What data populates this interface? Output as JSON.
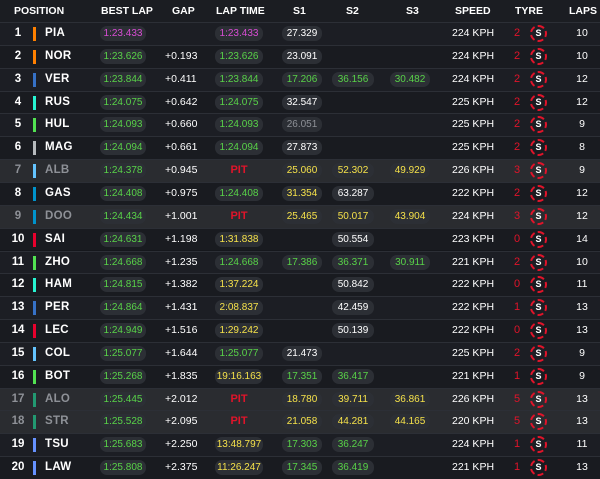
{
  "headers": {
    "position": "POSITION",
    "best_lap": "BEST LAP",
    "gap": "GAP",
    "lap_time": "LAP TIME",
    "s1": "S1",
    "s2": "S2",
    "s3": "S3",
    "speed": "SPEED",
    "tyre": "TYRE",
    "laps": "LAPS"
  },
  "colors": {
    "purple": "#d84dd4",
    "green": "#58d248",
    "yellow": "#f5e14a",
    "white": "#ffffff",
    "grey": "#8e9197",
    "pit": "#e0142a",
    "mclaren": "#ff8000",
    "redbull": "#3671c6",
    "racingbulls": "#6692ff",
    "sauber": "#52e252",
    "haas": "#b6babd",
    "williams": "#64c4ff",
    "alpine": "#0093cc",
    "astonmartin": "#229971",
    "ferrari": "#e8002d",
    "mercedes": "#27f4d2"
  },
  "tyre_icon": "soft-tyre-icon",
  "rows": [
    {
      "pos": "1",
      "driver": "PIA",
      "team_color": "#ff8000",
      "retired": false,
      "best": "1:23.433",
      "best_c": "purple",
      "gap": "",
      "pit": "",
      "laptime": "1:23.433",
      "laptime_c": "purple",
      "s1": "27.329",
      "s1_c": "white",
      "s2": "",
      "s2_c": "",
      "s3": "",
      "s3_c": "",
      "speed": "224 KPH",
      "tyre_age": "2",
      "tyre": "S",
      "laps": "10"
    },
    {
      "pos": "2",
      "driver": "NOR",
      "team_color": "#ff8000",
      "retired": false,
      "best": "1:23.626",
      "best_c": "green",
      "gap": "+0.193",
      "pit": "",
      "laptime": "1:23.626",
      "laptime_c": "green",
      "s1": "23.091",
      "s1_c": "white",
      "s2": "",
      "s2_c": "",
      "s3": "",
      "s3_c": "",
      "speed": "224 KPH",
      "tyre_age": "2",
      "tyre": "S",
      "laps": "10"
    },
    {
      "pos": "3",
      "driver": "VER",
      "team_color": "#3671c6",
      "retired": false,
      "best": "1:23.844",
      "best_c": "green",
      "gap": "+0.411",
      "pit": "",
      "laptime": "1:23.844",
      "laptime_c": "green",
      "s1": "17.206",
      "s1_c": "green",
      "s2": "36.156",
      "s2_c": "green",
      "s3": "30.482",
      "s3_c": "green",
      "speed": "224 KPH",
      "tyre_age": "2",
      "tyre": "S",
      "laps": "12"
    },
    {
      "pos": "4",
      "driver": "RUS",
      "team_color": "#27f4d2",
      "retired": false,
      "best": "1:24.075",
      "best_c": "green",
      "gap": "+0.642",
      "pit": "",
      "laptime": "1:24.075",
      "laptime_c": "green",
      "s1": "32.547",
      "s1_c": "white",
      "s2": "",
      "s2_c": "",
      "s3": "",
      "s3_c": "",
      "speed": "225 KPH",
      "tyre_age": "2",
      "tyre": "S",
      "laps": "12"
    },
    {
      "pos": "5",
      "driver": "HUL",
      "team_color": "#52e252",
      "retired": false,
      "best": "1:24.093",
      "best_c": "green",
      "gap": "+0.660",
      "pit": "",
      "laptime": "1:24.093",
      "laptime_c": "green",
      "s1": "26.051",
      "s1_c": "grey",
      "s2": "",
      "s2_c": "",
      "s3": "",
      "s3_c": "",
      "speed": "225 KPH",
      "tyre_age": "2",
      "tyre": "S",
      "laps": "9"
    },
    {
      "pos": "6",
      "driver": "MAG",
      "team_color": "#b6babd",
      "retired": false,
      "best": "1:24.094",
      "best_c": "green",
      "gap": "+0.661",
      "pit": "",
      "laptime": "1:24.094",
      "laptime_c": "green",
      "s1": "27.873",
      "s1_c": "white",
      "s2": "",
      "s2_c": "",
      "s3": "",
      "s3_c": "",
      "speed": "225 KPH",
      "tyre_age": "2",
      "tyre": "S",
      "laps": "8"
    },
    {
      "pos": "7",
      "driver": "ALB",
      "team_color": "#64c4ff",
      "retired": true,
      "best": "1:24.378",
      "best_c": "green",
      "gap": "+0.945",
      "pit": "PIT",
      "laptime": "",
      "laptime_c": "",
      "s1": "25.060",
      "s1_c": "yellow",
      "s2": "52.302",
      "s2_c": "yellow",
      "s3": "49.929",
      "s3_c": "yellow",
      "speed": "226 KPH",
      "tyre_age": "3",
      "tyre": "S",
      "laps": "9"
    },
    {
      "pos": "8",
      "driver": "GAS",
      "team_color": "#0093cc",
      "retired": false,
      "best": "1:24.408",
      "best_c": "green",
      "gap": "+0.975",
      "pit": "",
      "laptime": "1:24.408",
      "laptime_c": "green",
      "s1": "31.354",
      "s1_c": "yellow",
      "s2": "63.287",
      "s2_c": "white",
      "s3": "",
      "s3_c": "",
      "speed": "222 KPH",
      "tyre_age": "2",
      "tyre": "S",
      "laps": "12"
    },
    {
      "pos": "9",
      "driver": "DOO",
      "team_color": "#0093cc",
      "retired": true,
      "best": "1:24.434",
      "best_c": "green",
      "gap": "+1.001",
      "pit": "PIT",
      "laptime": "",
      "laptime_c": "",
      "s1": "25.465",
      "s1_c": "yellow",
      "s2": "50.017",
      "s2_c": "yellow",
      "s3": "43.904",
      "s3_c": "yellow",
      "speed": "224 KPH",
      "tyre_age": "3",
      "tyre": "S",
      "laps": "12"
    },
    {
      "pos": "10",
      "driver": "SAI",
      "team_color": "#e8002d",
      "retired": false,
      "best": "1:24.631",
      "best_c": "green",
      "gap": "+1.198",
      "pit": "",
      "laptime": "1:31.838",
      "laptime_c": "yellow",
      "s1": "",
      "s1_c": "",
      "s2": "50.554",
      "s2_c": "white",
      "s3": "",
      "s3_c": "",
      "speed": "223 KPH",
      "tyre_age": "0",
      "tyre": "S",
      "laps": "14"
    },
    {
      "pos": "11",
      "driver": "ZHO",
      "team_color": "#52e252",
      "retired": false,
      "best": "1:24.668",
      "best_c": "green",
      "gap": "+1.235",
      "pit": "",
      "laptime": "1:24.668",
      "laptime_c": "green",
      "s1": "17.386",
      "s1_c": "green",
      "s2": "36.371",
      "s2_c": "green",
      "s3": "30.911",
      "s3_c": "green",
      "speed": "221 KPH",
      "tyre_age": "2",
      "tyre": "S",
      "laps": "10"
    },
    {
      "pos": "12",
      "driver": "HAM",
      "team_color": "#27f4d2",
      "retired": false,
      "best": "1:24.815",
      "best_c": "green",
      "gap": "+1.382",
      "pit": "",
      "laptime": "1:37.224",
      "laptime_c": "yellow",
      "s1": "",
      "s1_c": "",
      "s2": "50.842",
      "s2_c": "white",
      "s3": "",
      "s3_c": "",
      "speed": "222 KPH",
      "tyre_age": "0",
      "tyre": "S",
      "laps": "11"
    },
    {
      "pos": "13",
      "driver": "PER",
      "team_color": "#3671c6",
      "retired": false,
      "best": "1:24.864",
      "best_c": "green",
      "gap": "+1.431",
      "pit": "",
      "laptime": "2:08.837",
      "laptime_c": "yellow",
      "s1": "",
      "s1_c": "",
      "s2": "42.459",
      "s2_c": "white",
      "s3": "",
      "s3_c": "",
      "speed": "222 KPH",
      "tyre_age": "1",
      "tyre": "S",
      "laps": "13"
    },
    {
      "pos": "14",
      "driver": "LEC",
      "team_color": "#e8002d",
      "retired": false,
      "best": "1:24.949",
      "best_c": "green",
      "gap": "+1.516",
      "pit": "",
      "laptime": "1:29.242",
      "laptime_c": "yellow",
      "s1": "",
      "s1_c": "",
      "s2": "50.139",
      "s2_c": "white",
      "s3": "",
      "s3_c": "",
      "speed": "222 KPH",
      "tyre_age": "0",
      "tyre": "S",
      "laps": "13"
    },
    {
      "pos": "15",
      "driver": "COL",
      "team_color": "#64c4ff",
      "retired": false,
      "best": "1:25.077",
      "best_c": "green",
      "gap": "+1.644",
      "pit": "",
      "laptime": "1:25.077",
      "laptime_c": "green",
      "s1": "21.473",
      "s1_c": "white",
      "s2": "",
      "s2_c": "",
      "s3": "",
      "s3_c": "",
      "speed": "225 KPH",
      "tyre_age": "2",
      "tyre": "S",
      "laps": "9"
    },
    {
      "pos": "16",
      "driver": "BOT",
      "team_color": "#52e252",
      "retired": false,
      "best": "1:25.268",
      "best_c": "green",
      "gap": "+1.835",
      "pit": "",
      "laptime": "19:16.163",
      "laptime_c": "yellow",
      "s1": "17.351",
      "s1_c": "green",
      "s2": "36.417",
      "s2_c": "green",
      "s3": "",
      "s3_c": "",
      "speed": "221 KPH",
      "tyre_age": "1",
      "tyre": "S",
      "laps": "9"
    },
    {
      "pos": "17",
      "driver": "ALO",
      "team_color": "#229971",
      "retired": true,
      "best": "1:25.445",
      "best_c": "green",
      "gap": "+2.012",
      "pit": "PIT",
      "laptime": "",
      "laptime_c": "",
      "s1": "18.780",
      "s1_c": "yellow",
      "s2": "39.711",
      "s2_c": "yellow",
      "s3": "36.861",
      "s3_c": "yellow",
      "speed": "226 KPH",
      "tyre_age": "5",
      "tyre": "S",
      "laps": "13"
    },
    {
      "pos": "18",
      "driver": "STR",
      "team_color": "#229971",
      "retired": true,
      "best": "1:25.528",
      "best_c": "green",
      "gap": "+2.095",
      "pit": "PIT",
      "laptime": "",
      "laptime_c": "",
      "s1": "21.058",
      "s1_c": "yellow",
      "s2": "44.281",
      "s2_c": "yellow",
      "s3": "44.165",
      "s3_c": "yellow",
      "speed": "220 KPH",
      "tyre_age": "5",
      "tyre": "S",
      "laps": "13"
    },
    {
      "pos": "19",
      "driver": "TSU",
      "team_color": "#6692ff",
      "retired": false,
      "best": "1:25.683",
      "best_c": "green",
      "gap": "+2.250",
      "pit": "",
      "laptime": "13:48.797",
      "laptime_c": "yellow",
      "s1": "17.303",
      "s1_c": "green",
      "s2": "36.247",
      "s2_c": "green",
      "s3": "",
      "s3_c": "",
      "speed": "224 KPH",
      "tyre_age": "1",
      "tyre": "S",
      "laps": "11"
    },
    {
      "pos": "20",
      "driver": "LAW",
      "team_color": "#6692ff",
      "retired": false,
      "best": "1:25.808",
      "best_c": "green",
      "gap": "+2.375",
      "pit": "",
      "laptime": "11:26.247",
      "laptime_c": "yellow",
      "s1": "17.345",
      "s1_c": "green",
      "s2": "36.419",
      "s2_c": "green",
      "s3": "",
      "s3_c": "",
      "speed": "221 KPH",
      "tyre_age": "1",
      "tyre": "S",
      "laps": "13"
    }
  ]
}
